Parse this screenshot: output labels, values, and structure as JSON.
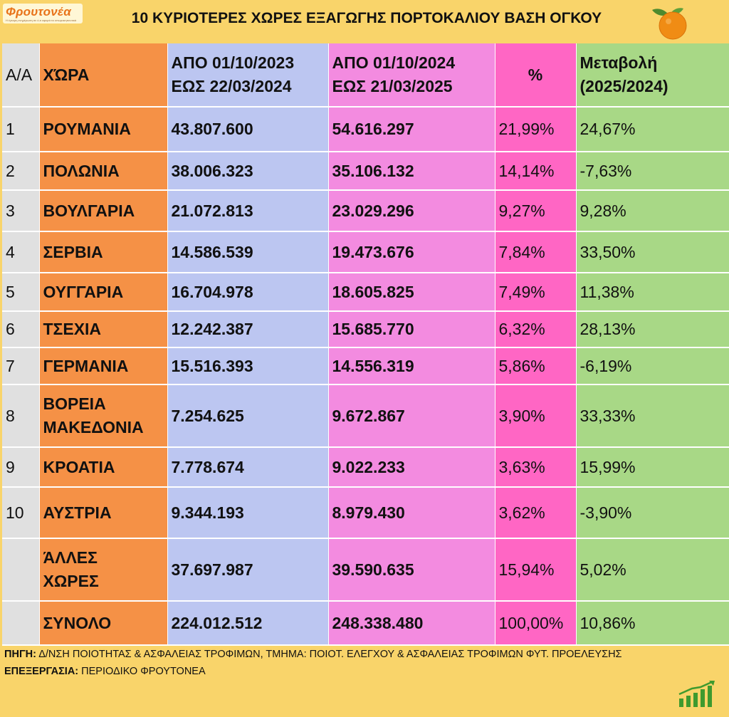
{
  "logo": {
    "name": "Φρουτονέα",
    "tagline": "Η έγκυρη ενημέρωση σε ό,τι αφορά τα οπωροκηπευτικά"
  },
  "title": "10 ΚΥΡΙΟΤΕΡΕΣ ΧΩΡΕΣ ΕΞΑΓΩΓΗΣ ΠΟΡΤΟΚΑΛΙΟΥ ΒΑΣΗ ΟΓΚΟΥ",
  "table": {
    "headers": {
      "idx": "Α/Α",
      "country": "ΧΏΡΑ",
      "period1_l1": "ΑΠΟ 01/10/2023",
      "period1_l2": "ΕΩΣ 22/03/2024",
      "period2_l1": "ΑΠΟ 01/10/2024",
      "period2_l2": "ΕΩΣ  21/03/2025",
      "pct": "%",
      "change_l1": "Μεταβολή",
      "change_l2": "(2025/2024)"
    },
    "rows": [
      {
        "idx": "1",
        "country": "ΡΟΥΜΑΝΙΑ",
        "v2024": "43.807.600",
        "v2025": "54.616.297",
        "pct": "21,99%",
        "change": "24,67%"
      },
      {
        "idx": "2",
        "country": "ΠΟΛΩΝΙΑ",
        "v2024": "38.006.323",
        "v2025": "35.106.132",
        "pct": "14,14%",
        "change": "-7,63%"
      },
      {
        "idx": "3",
        "country": "ΒΟΥΛΓΑΡΙΑ",
        "v2024": "21.072.813",
        "v2025": "23.029.296",
        "pct": "9,27%",
        "change": "9,28%"
      },
      {
        "idx": "4",
        "country": "ΣΕΡΒΙΑ",
        "v2024": "14.586.539",
        "v2025": "19.473.676",
        "pct": "7,84%",
        "change": "33,50%"
      },
      {
        "idx": "5",
        "country": "ΟΥΓΓΑΡΙΑ",
        "v2024": "16.704.978",
        "v2025": "18.605.825",
        "pct": "7,49%",
        "change": "11,38%"
      },
      {
        "idx": "6",
        "country": "ΤΣΕΧΙΑ",
        "v2024": "12.242.387",
        "v2025": "15.685.770",
        "pct": "6,32%",
        "change": "28,13%"
      },
      {
        "idx": "7",
        "country": "ΓΕΡΜΑΝΙΑ",
        "v2024": "15.516.393",
        "v2025": "14.556.319",
        "pct": "5,86%",
        "change": "-6,19%"
      },
      {
        "idx": "8",
        "country_l1": "ΒΟΡΕΙΑ",
        "country_l2": "ΜΑΚΕΔΟΝΙΑ",
        "v2024": "7.254.625",
        "v2025": "9.672.867",
        "pct": "3,90%",
        "change": "33,33%"
      },
      {
        "idx": "9",
        "country": "ΚΡΟΑΤΙΑ",
        "v2024": "7.778.674",
        "v2025": "9.022.233",
        "pct": "3,63%",
        "change": "15,99%"
      },
      {
        "idx": "10",
        "country": "ΑΥΣΤΡΙΑ",
        "v2024": "9.344.193",
        "v2025": "8.979.430",
        "pct": "3,62%",
        "change": "-3,90%"
      },
      {
        "idx": "",
        "country_l1": "ΆΛΛΕΣ",
        "country_l2": "ΧΩΡΕΣ",
        "v2024": "37.697.987",
        "v2025": "39.590.635",
        "pct": "15,94%",
        "change": "5,02%"
      },
      {
        "idx": "",
        "country": "ΣΥΝΟΛΟ",
        "v2024": "224.012.512",
        "v2025": "248.338.480",
        "pct": "100,00%",
        "change": "10,86%"
      }
    ]
  },
  "footer": {
    "source_label": "ΠΗΓΗ:",
    "source_text": " Δ/ΝΣΗ ΠΟΙΟΤΗΤΑΣ & ΑΣΦΑΛΕΙΑΣ ΤΡΟΦΙΜΩΝ, ΤΜΗΜΑ: ΠΟΙΟΤ. ΕΛΕΓΧΟΥ & ΑΣΦΑΛΕΙΑΣ ΤΡΟΦΙΜΩΝ ΦΥΤ. ΠΡΟΕΛΕΥΣΗΣ",
    "processing_label": "ΕΠΕΞΕΡΓΑΣΙΑ:",
    "processing_text": " ΠΕΡΙΟΔΙΚΟ ΦΡΟΥΤΟΝΕΑ"
  },
  "icons": {
    "logo": "froutonea-logo",
    "fruit": "orange-icon",
    "chart": "growth-chart-icon"
  },
  "colors": {
    "background": "#f9d46a",
    "index_col": "#e0e0e0",
    "country_col": "#f59146",
    "period1_col": "#bcc6f1",
    "period2_col": "#f38be0",
    "pct_col": "#ff66c4",
    "change_col": "#a8d886"
  }
}
